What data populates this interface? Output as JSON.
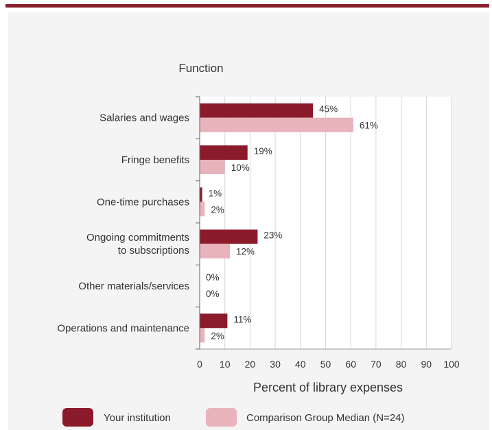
{
  "chart_data": {
    "type": "bar",
    "orientation": "horizontal",
    "title": "Function",
    "categories": [
      [
        "Salaries and wages"
      ],
      [
        "Fringe benefits"
      ],
      [
        "One-time purchases"
      ],
      [
        "Ongoing commitments",
        "to subscriptions"
      ],
      [
        "Other materials/services"
      ],
      [
        "Operations and maintenance"
      ]
    ],
    "series": [
      {
        "name": "Your institution",
        "color": "#8b1a2b",
        "values": [
          45,
          19,
          1,
          23,
          0,
          11
        ]
      },
      {
        "name": "Comparison Group Median (N=24)",
        "color": "#e8b3bb",
        "values": [
          61,
          10,
          2,
          12,
          0,
          2
        ]
      }
    ],
    "value_suffix": "%",
    "xlabel": "Percent of library expenses",
    "xlim": [
      0,
      100
    ],
    "xticks": [
      0,
      10,
      20,
      30,
      40,
      50,
      60,
      70,
      80,
      90,
      100
    ],
    "grid": true,
    "legend": "bottom"
  }
}
